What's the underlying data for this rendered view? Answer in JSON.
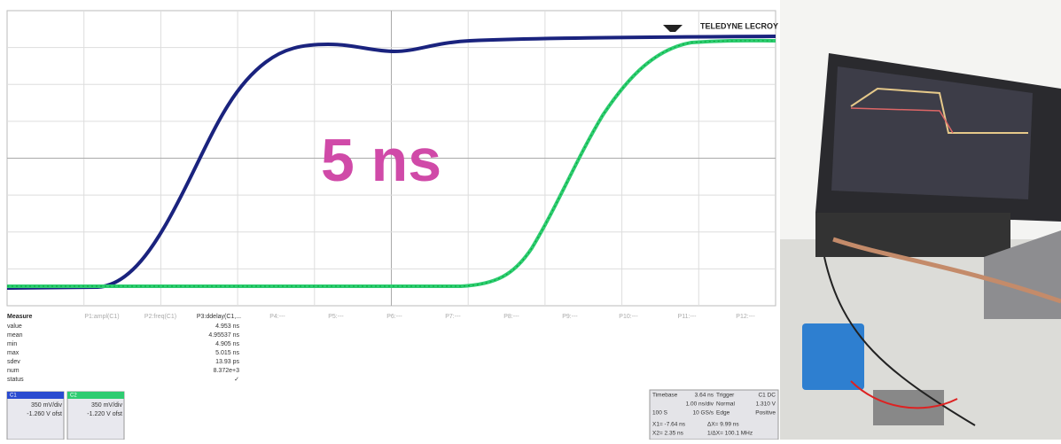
{
  "brand": "TELEDYNE LECROY",
  "overlay": "5 ns",
  "measure": {
    "header": "Measure",
    "rows": [
      [
        "value",
        "4.953 ns"
      ],
      [
        "mean",
        "4.95537 ns"
      ],
      [
        "min",
        "4.905 ns"
      ],
      [
        "max",
        "5.015 ns"
      ],
      [
        "sdev",
        "13.93 ps"
      ],
      [
        "num",
        "8.372e+3"
      ],
      [
        "status",
        "✓"
      ]
    ]
  },
  "params": [
    "P1:ampl(C1)",
    "P2:freq(C1)",
    "P3:ddelay(C1,...",
    "P4:---",
    "P5:---",
    "P6:---",
    "P7:---",
    "P8:---",
    "P9:---",
    "P10:---",
    "P11:---",
    "P12:---"
  ],
  "channels": [
    {
      "name": "C1",
      "scale": "350 mV/div",
      "offset": "-1.260 V ofst"
    },
    {
      "name": "C2",
      "scale": "350 mV/div",
      "offset": "-1.220 V ofst"
    }
  ],
  "timebase": {
    "rows": [
      [
        "Timebase",
        "3.64 ns",
        "Trigger",
        "C1 DC"
      ],
      [
        "",
        "1.00 ns/div",
        "Normal",
        "1.310 V"
      ],
      [
        "100 S",
        "10 GS/s",
        "Edge",
        "Positive"
      ]
    ],
    "cursors": [
      [
        "X1= -7.64 ns",
        "ΔX= 9.99 ns"
      ],
      [
        "X2= 2.35 ns",
        "1/ΔX= 100.1 MHz"
      ]
    ]
  }
}
